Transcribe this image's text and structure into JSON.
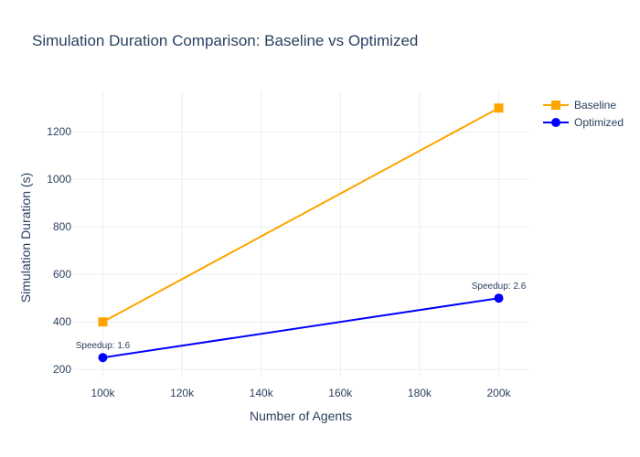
{
  "chart_data": {
    "type": "line",
    "title": "Simulation Duration Comparison: Baseline vs Optimized",
    "xlabel": "Number of Agents",
    "ylabel": "Simulation Duration (s)",
    "x": [
      100000,
      200000
    ],
    "xlim": [
      92500,
      207500
    ],
    "ylim": [
      170,
      1370
    ],
    "xticks": [
      {
        "value": 100000,
        "label": "100k"
      },
      {
        "value": 120000,
        "label": "120k"
      },
      {
        "value": 140000,
        "label": "140k"
      },
      {
        "value": 160000,
        "label": "160k"
      },
      {
        "value": 180000,
        "label": "180k"
      },
      {
        "value": 200000,
        "label": "200k"
      }
    ],
    "yticks": [
      {
        "value": 200,
        "label": "200"
      },
      {
        "value": 400,
        "label": "400"
      },
      {
        "value": 600,
        "label": "600"
      },
      {
        "value": 800,
        "label": "800"
      },
      {
        "value": 1000,
        "label": "1000"
      },
      {
        "value": 1200,
        "label": "1200"
      }
    ],
    "series": [
      {
        "name": "Baseline",
        "values": [
          400,
          1300
        ],
        "color": "#FFA500",
        "marker": "square"
      },
      {
        "name": "Optimized",
        "values": [
          250,
          500
        ],
        "color": "#0000FF",
        "marker": "circle"
      }
    ],
    "annotations": [
      {
        "x": 100000,
        "y": 250,
        "text": "Speedup: 1.6"
      },
      {
        "x": 200000,
        "y": 500,
        "text": "Speedup: 2.6"
      }
    ],
    "legend": "top-right",
    "grid": true
  }
}
